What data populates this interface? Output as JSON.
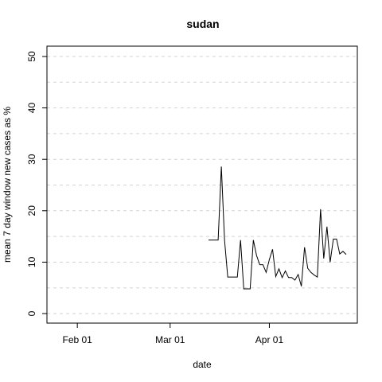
{
  "chart_data": {
    "type": "line",
    "title": "sudan",
    "xlabel": "date",
    "ylabel": "mean  7  day window new cases as %",
    "ylim": [
      0,
      50
    ],
    "yticks": [
      0,
      10,
      20,
      30,
      40,
      50
    ],
    "xlim": [
      "2020-01-24",
      "2020-04-27"
    ],
    "xticks": [
      {
        "date": "2020-02-01",
        "label": "Feb 01"
      },
      {
        "date": "2020-03-01",
        "label": "Mar 01"
      },
      {
        "date": "2020-04-01",
        "label": "Apr 01"
      }
    ],
    "grid": true,
    "series": [
      {
        "color": "#000000",
        "points": [
          [
            "2020-03-13",
            14.3
          ],
          [
            "2020-03-14",
            14.3
          ],
          [
            "2020-03-15",
            14.3
          ],
          [
            "2020-03-16",
            14.3
          ],
          [
            "2020-03-17",
            28.6
          ],
          [
            "2020-03-18",
            14.3
          ],
          [
            "2020-03-19",
            7.1
          ],
          [
            "2020-03-20",
            7.1
          ],
          [
            "2020-03-21",
            7.1
          ],
          [
            "2020-03-22",
            7.1
          ],
          [
            "2020-03-23",
            14.3
          ],
          [
            "2020-03-24",
            4.8
          ],
          [
            "2020-03-25",
            4.8
          ],
          [
            "2020-03-26",
            4.8
          ],
          [
            "2020-03-27",
            14.3
          ],
          [
            "2020-03-28",
            11.3
          ],
          [
            "2020-03-29",
            9.5
          ],
          [
            "2020-03-30",
            9.5
          ],
          [
            "2020-03-31",
            8.0
          ],
          [
            "2020-04-01",
            10.5
          ],
          [
            "2020-04-02",
            12.5
          ],
          [
            "2020-04-03",
            7.2
          ],
          [
            "2020-04-04",
            8.7
          ],
          [
            "2020-04-05",
            7.0
          ],
          [
            "2020-04-06",
            8.3
          ],
          [
            "2020-04-07",
            7.0
          ],
          [
            "2020-04-08",
            7.0
          ],
          [
            "2020-04-09",
            6.5
          ],
          [
            "2020-04-10",
            7.6
          ],
          [
            "2020-04-11",
            5.3
          ],
          [
            "2020-04-12",
            12.9
          ],
          [
            "2020-04-13",
            8.8
          ],
          [
            "2020-04-14",
            8.0
          ],
          [
            "2020-04-15",
            7.5
          ],
          [
            "2020-04-16",
            7.1
          ],
          [
            "2020-04-17",
            20.3
          ],
          [
            "2020-04-18",
            10.7
          ],
          [
            "2020-04-19",
            16.9
          ],
          [
            "2020-04-20",
            10.0
          ],
          [
            "2020-04-21",
            14.5
          ],
          [
            "2020-04-22",
            14.5
          ],
          [
            "2020-04-23",
            11.6
          ],
          [
            "2020-04-24",
            12.1
          ],
          [
            "2020-04-25",
            11.5
          ]
        ]
      }
    ]
  }
}
